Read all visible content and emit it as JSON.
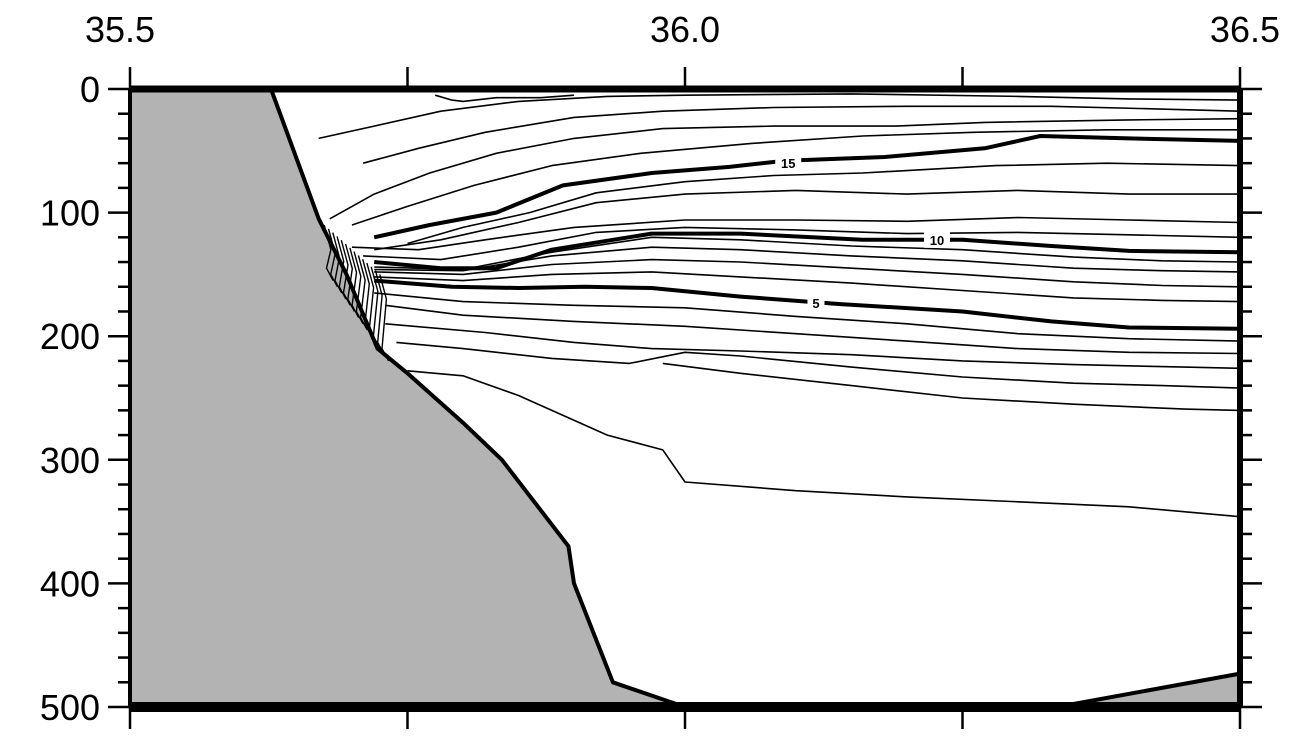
{
  "chart_data": {
    "type": "contour",
    "title": "",
    "xlabel": "",
    "ylabel": "",
    "xlim": [
      35.5,
      36.5
    ],
    "ylim": [
      500,
      0
    ],
    "y_inverted": true,
    "x_ticks": [
      {
        "value": 35.5,
        "label": "35.5"
      },
      {
        "value": 36.0,
        "label": "36.0"
      },
      {
        "value": 36.5,
        "label": "36.5"
      }
    ],
    "x_minor_ticks": [
      35.75,
      36.25
    ],
    "y_ticks": [
      {
        "value": 0,
        "label": "0"
      },
      {
        "value": 100,
        "label": "100"
      },
      {
        "value": 200,
        "label": "200"
      },
      {
        "value": 300,
        "label": "300"
      },
      {
        "value": 400,
        "label": "400"
      },
      {
        "value": 500,
        "label": "500"
      }
    ],
    "y_minor_step": 20,
    "grid": false,
    "colors": {
      "terrain": "#b3b3b3",
      "line": "#000000",
      "background": "#ffffff"
    },
    "terrain": [
      [
        [
          35.5,
          0
        ],
        [
          35.627,
          0
        ],
        [
          35.67,
          105
        ],
        [
          35.695,
          150
        ],
        [
          35.723,
          210
        ],
        [
          35.75,
          230
        ],
        [
          35.8,
          270
        ],
        [
          35.835,
          300
        ],
        [
          35.895,
          370
        ],
        [
          35.9,
          400
        ],
        [
          35.935,
          480
        ],
        [
          36.0,
          500
        ],
        [
          35.5,
          500
        ]
      ],
      [
        [
          36.335,
          500
        ],
        [
          36.5,
          473
        ],
        [
          36.5,
          500
        ]
      ]
    ],
    "contours": [
      {
        "level": 15,
        "label": "15",
        "bold": true,
        "points": [
          [
            35.72,
            120
          ],
          [
            35.77,
            110
          ],
          [
            35.83,
            100
          ],
          [
            35.89,
            78
          ],
          [
            35.97,
            68
          ],
          [
            36.04,
            63
          ],
          [
            36.09,
            58
          ],
          [
            36.18,
            55
          ],
          [
            36.27,
            48
          ],
          [
            36.32,
            38
          ],
          [
            36.4,
            40
          ],
          [
            36.5,
            42
          ]
        ],
        "label_at": [
          36.093,
          60
        ]
      },
      {
        "level": 10,
        "label": "10",
        "bold": true,
        "points": [
          [
            35.72,
            140
          ],
          [
            35.78,
            145
          ],
          [
            35.83,
            145
          ],
          [
            35.88,
            130
          ],
          [
            35.97,
            117
          ],
          [
            36.05,
            117
          ],
          [
            36.16,
            122
          ],
          [
            36.25,
            122
          ],
          [
            36.33,
            127
          ],
          [
            36.4,
            131
          ],
          [
            36.5,
            132
          ]
        ],
        "label_at": [
          36.227,
          122
        ]
      },
      {
        "level": 5,
        "label": "5",
        "bold": true,
        "points": [
          [
            35.72,
            155
          ],
          [
            35.79,
            160
          ],
          [
            35.85,
            161
          ],
          [
            35.91,
            160
          ],
          [
            35.97,
            161
          ],
          [
            36.05,
            168
          ],
          [
            36.14,
            174
          ],
          [
            36.25,
            180
          ],
          [
            36.33,
            188
          ],
          [
            36.4,
            193
          ],
          [
            36.5,
            194
          ]
        ],
        "label_at": [
          36.118,
          173
        ]
      },
      {
        "level": 6,
        "label": "",
        "bold": false,
        "points": [
          [
            35.72,
            152
          ],
          [
            35.8,
            155
          ],
          [
            35.88,
            150
          ],
          [
            35.97,
            148
          ],
          [
            36.05,
            152
          ],
          [
            36.15,
            157
          ],
          [
            36.25,
            163
          ],
          [
            36.35,
            169
          ],
          [
            36.43,
            171
          ],
          [
            36.5,
            172
          ]
        ]
      },
      {
        "level": 7,
        "label": "",
        "bold": false,
        "points": [
          [
            35.72,
            148
          ],
          [
            35.8,
            150
          ],
          [
            35.88,
            142
          ],
          [
            35.97,
            138
          ],
          [
            36.05,
            140
          ],
          [
            36.15,
            145
          ],
          [
            36.25,
            150
          ],
          [
            36.35,
            156
          ],
          [
            36.43,
            159
          ],
          [
            36.5,
            160
          ]
        ]
      },
      {
        "level": 8,
        "label": "",
        "bold": false,
        "points": [
          [
            35.72,
            146
          ],
          [
            35.8,
            147
          ],
          [
            35.88,
            135
          ],
          [
            35.97,
            128
          ],
          [
            36.05,
            130
          ],
          [
            36.15,
            135
          ],
          [
            36.25,
            139
          ],
          [
            36.35,
            145
          ],
          [
            36.43,
            147
          ],
          [
            36.5,
            148
          ]
        ]
      },
      {
        "level": 9,
        "label": "",
        "bold": false,
        "points": [
          [
            35.72,
            144
          ],
          [
            35.8,
            146
          ],
          [
            35.88,
            132
          ],
          [
            35.97,
            120
          ],
          [
            36.05,
            122
          ],
          [
            36.15,
            127
          ],
          [
            36.25,
            130
          ],
          [
            36.35,
            136
          ],
          [
            36.43,
            139
          ],
          [
            36.5,
            140
          ]
        ]
      },
      {
        "level": 11,
        "label": "",
        "bold": false,
        "points": [
          [
            35.71,
            135
          ],
          [
            35.78,
            138
          ],
          [
            35.85,
            128
          ],
          [
            35.92,
            116
          ],
          [
            36.0,
            112
          ],
          [
            36.1,
            114
          ],
          [
            36.2,
            117
          ],
          [
            36.3,
            116
          ],
          [
            36.4,
            118
          ],
          [
            36.5,
            120
          ]
        ]
      },
      {
        "level": 12,
        "label": "",
        "bold": false,
        "points": [
          [
            35.7,
            128
          ],
          [
            35.76,
            130
          ],
          [
            35.82,
            122
          ],
          [
            35.9,
            112
          ],
          [
            36.0,
            106
          ],
          [
            36.1,
            106
          ],
          [
            36.2,
            107
          ],
          [
            36.3,
            104
          ],
          [
            36.4,
            106
          ],
          [
            36.5,
            108
          ]
        ]
      },
      {
        "level": 13,
        "label": "",
        "bold": false,
        "points": [
          [
            35.72,
            130
          ],
          [
            35.78,
            122
          ],
          [
            35.85,
            108
          ],
          [
            35.92,
            92
          ],
          [
            36.0,
            85
          ],
          [
            36.1,
            82
          ],
          [
            36.2,
            85
          ],
          [
            36.3,
            82
          ],
          [
            36.4,
            85
          ],
          [
            36.5,
            85
          ]
        ]
      },
      {
        "level": 14,
        "label": "",
        "bold": false,
        "points": [
          [
            35.75,
            125
          ],
          [
            35.8,
            112
          ],
          [
            35.86,
            100
          ],
          [
            35.92,
            84
          ],
          [
            36.0,
            75
          ],
          [
            36.08,
            70
          ],
          [
            36.16,
            68
          ],
          [
            36.28,
            62
          ],
          [
            36.38,
            60
          ],
          [
            36.5,
            62
          ]
        ]
      },
      {
        "level": 16,
        "label": "",
        "bold": false,
        "points": [
          [
            35.7,
            110
          ],
          [
            35.75,
            95
          ],
          [
            35.81,
            78
          ],
          [
            35.88,
            62
          ],
          [
            35.96,
            52
          ],
          [
            36.06,
            44
          ],
          [
            36.16,
            38
          ],
          [
            36.26,
            35
          ],
          [
            36.38,
            33
          ],
          [
            36.5,
            33
          ]
        ]
      },
      {
        "level": 17,
        "label": "",
        "bold": false,
        "points": [
          [
            35.68,
            105
          ],
          [
            35.72,
            85
          ],
          [
            35.77,
            68
          ],
          [
            35.83,
            52
          ],
          [
            35.9,
            40
          ],
          [
            35.98,
            32
          ],
          [
            36.08,
            30
          ],
          [
            36.19,
            30
          ],
          [
            36.27,
            27
          ],
          [
            36.4,
            25
          ],
          [
            36.5,
            24
          ]
        ]
      },
      {
        "level": 18,
        "label": "",
        "bold": false,
        "points": [
          [
            35.71,
            60
          ],
          [
            35.76,
            48
          ],
          [
            35.82,
            35
          ],
          [
            35.9,
            23
          ],
          [
            35.98,
            18
          ],
          [
            36.08,
            15
          ],
          [
            36.2,
            14
          ],
          [
            36.33,
            14
          ],
          [
            36.42,
            16
          ],
          [
            36.5,
            18
          ]
        ]
      },
      {
        "level": 19,
        "label": "",
        "bold": false,
        "points": [
          [
            35.67,
            40
          ],
          [
            35.72,
            30
          ],
          [
            35.78,
            18
          ],
          [
            35.85,
            10
          ],
          [
            35.93,
            6
          ],
          [
            36.0,
            5
          ],
          [
            36.15,
            4
          ],
          [
            36.3,
            6
          ],
          [
            36.4,
            8
          ],
          [
            36.5,
            9
          ]
        ]
      },
      {
        "level": 20,
        "label": "",
        "bold": false,
        "points": [
          [
            35.775,
            5
          ],
          [
            35.79,
            9
          ],
          [
            35.8,
            10
          ],
          [
            35.83,
            7
          ],
          [
            35.87,
            7
          ],
          [
            35.9,
            5
          ]
        ]
      },
      {
        "level": 4,
        "label": "",
        "bold": false,
        "points": [
          [
            35.72,
            165
          ],
          [
            35.8,
            172
          ],
          [
            35.9,
            175
          ],
          [
            36.0,
            177
          ],
          [
            36.1,
            184
          ],
          [
            36.2,
            190
          ],
          [
            36.3,
            198
          ],
          [
            36.4,
            202
          ],
          [
            36.5,
            204
          ]
        ]
      },
      {
        "level": 3,
        "label": "",
        "bold": false,
        "points": [
          [
            35.73,
            175
          ],
          [
            35.8,
            183
          ],
          [
            35.9,
            188
          ],
          [
            36.0,
            192
          ],
          [
            36.1,
            198
          ],
          [
            36.2,
            204
          ],
          [
            36.3,
            210
          ],
          [
            36.4,
            213
          ],
          [
            36.5,
            214
          ]
        ]
      },
      {
        "level": 2,
        "label": "",
        "bold": false,
        "points": [
          [
            35.73,
            190
          ],
          [
            35.82,
            197
          ],
          [
            35.9,
            205
          ],
          [
            35.97,
            210
          ],
          [
            36.05,
            212
          ],
          [
            36.15,
            215
          ],
          [
            36.25,
            220
          ],
          [
            36.35,
            223
          ],
          [
            36.45,
            225
          ],
          [
            36.5,
            226
          ]
        ]
      },
      {
        "level": 1,
        "label": "",
        "bold": false,
        "points": [
          [
            35.74,
            205
          ],
          [
            35.8,
            210
          ],
          [
            35.88,
            218
          ],
          [
            35.95,
            222
          ],
          [
            36.0,
            213
          ],
          [
            36.05,
            216
          ],
          [
            36.15,
            225
          ],
          [
            36.25,
            233
          ],
          [
            36.35,
            238
          ],
          [
            36.43,
            240
          ],
          [
            36.5,
            242
          ]
        ]
      },
      {
        "level": 0,
        "label": "",
        "bold": false,
        "points": [
          [
            35.75,
            228
          ],
          [
            35.8,
            232
          ],
          [
            35.85,
            248
          ],
          [
            35.93,
            280
          ],
          [
            35.98,
            292
          ],
          [
            36.0,
            318
          ],
          [
            36.1,
            325
          ],
          [
            36.2,
            330
          ],
          [
            36.3,
            334
          ],
          [
            36.4,
            338
          ],
          [
            36.5,
            346
          ]
        ]
      },
      {
        "level": -1,
        "label": "",
        "bold": false,
        "points": [
          [
            35.98,
            222
          ],
          [
            36.05,
            230
          ],
          [
            36.15,
            240
          ],
          [
            36.25,
            250
          ],
          [
            36.35,
            255
          ],
          [
            36.45,
            259
          ],
          [
            36.5,
            260
          ]
        ]
      }
    ],
    "slope_hatching": {
      "x_range": [
        35.675,
        35.725
      ],
      "depth_range": [
        110,
        220
      ],
      "line_count": 14
    }
  }
}
